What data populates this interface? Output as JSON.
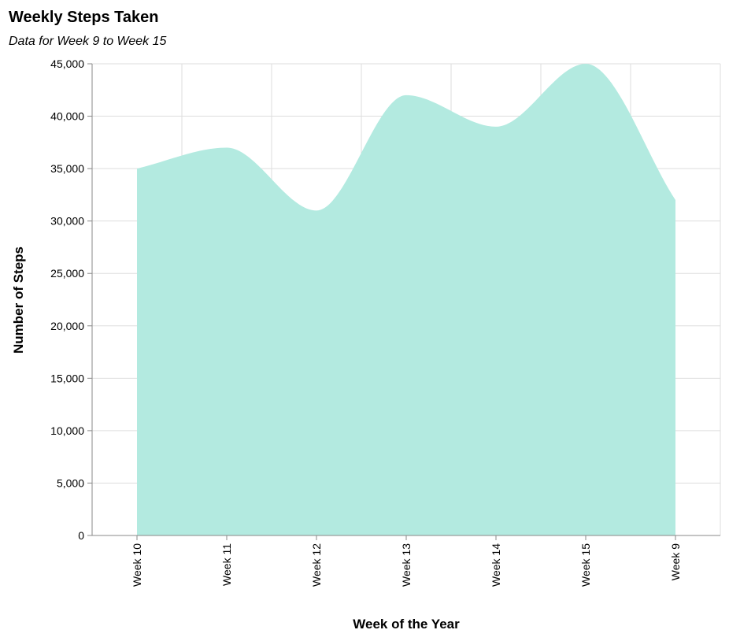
{
  "chart_data": {
    "type": "area",
    "title": "Weekly Steps Taken",
    "subtitle": "Data for Week 9 to Week 15",
    "xlabel": "Week of the Year",
    "ylabel": "Number of Steps",
    "categories": [
      "Week 10",
      "Week 11",
      "Week 12",
      "Week 13",
      "Week 14",
      "Week 15",
      "Week 9"
    ],
    "series": [
      {
        "values": [
          35000,
          37000,
          31000,
          42000,
          39000,
          45000,
          32000
        ],
        "color": "#b3eae0"
      }
    ],
    "ylim": [
      0,
      45000
    ],
    "yticks": [
      0,
      5000,
      10000,
      15000,
      20000,
      25000,
      30000,
      35000,
      40000,
      45000
    ],
    "ytick_labels": [
      "0",
      "5,000",
      "10,000",
      "15,000",
      "20,000",
      "25,000",
      "30,000",
      "35,000",
      "40,000",
      "45,000"
    ],
    "grid": true,
    "interpolation": "monotone"
  }
}
